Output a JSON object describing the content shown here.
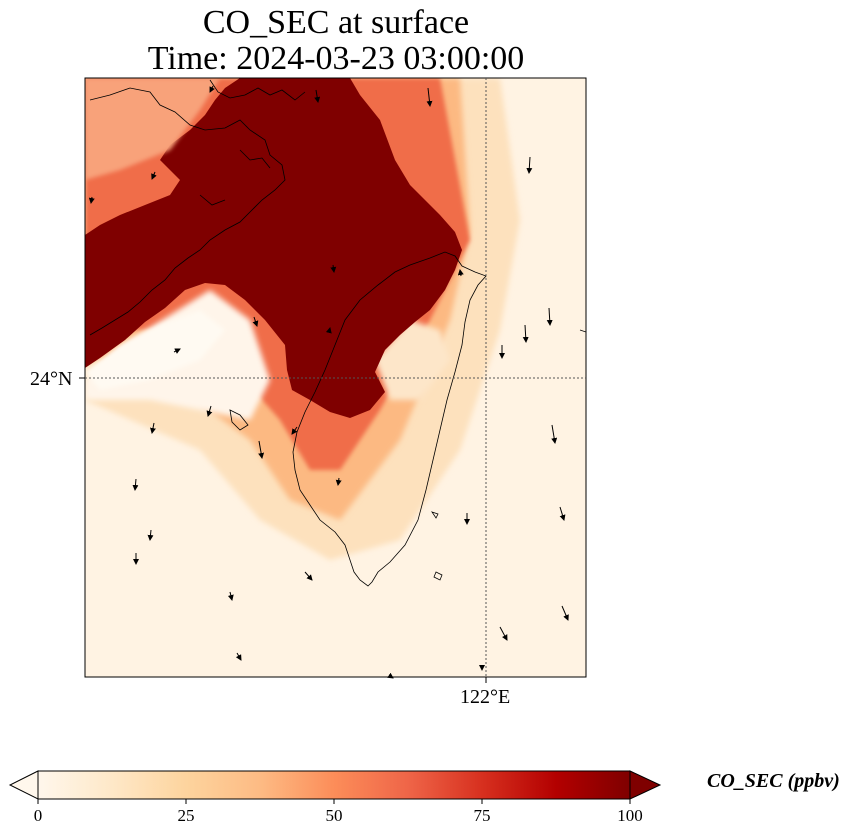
{
  "title_line1": "CO_SEC at surface",
  "title_line2": "Time: 2024-03-23 03:00:00",
  "axes": {
    "lat_tick_label": "24°N",
    "lon_tick_label": "122°E"
  },
  "colorbar": {
    "label": "CO_SEC (ppbv)",
    "ticks": [
      "0",
      "25",
      "50",
      "75",
      "100"
    ],
    "range": [
      0,
      100
    ],
    "extend": "both",
    "colormap": "OrRd",
    "colors": [
      "#fff7ec",
      "#fee8c8",
      "#fdd49e",
      "#fdbb84",
      "#fc8d59",
      "#ef6548",
      "#d7301f",
      "#b30000",
      "#7f0000"
    ]
  },
  "chart_data": {
    "type": "heatmap",
    "title": "CO_SEC at surface\nTime: 2024-03-23 03:00:00",
    "variable": "CO_SEC",
    "units": "ppbv",
    "time": "2024-03-23 03:00:00",
    "color_range": [
      0,
      100
    ],
    "gridlines": {
      "lat": [
        24
      ],
      "lon": [
        122
      ],
      "style": "dotted"
    },
    "overlays": [
      "coastline",
      "wind-vectors"
    ]
  }
}
